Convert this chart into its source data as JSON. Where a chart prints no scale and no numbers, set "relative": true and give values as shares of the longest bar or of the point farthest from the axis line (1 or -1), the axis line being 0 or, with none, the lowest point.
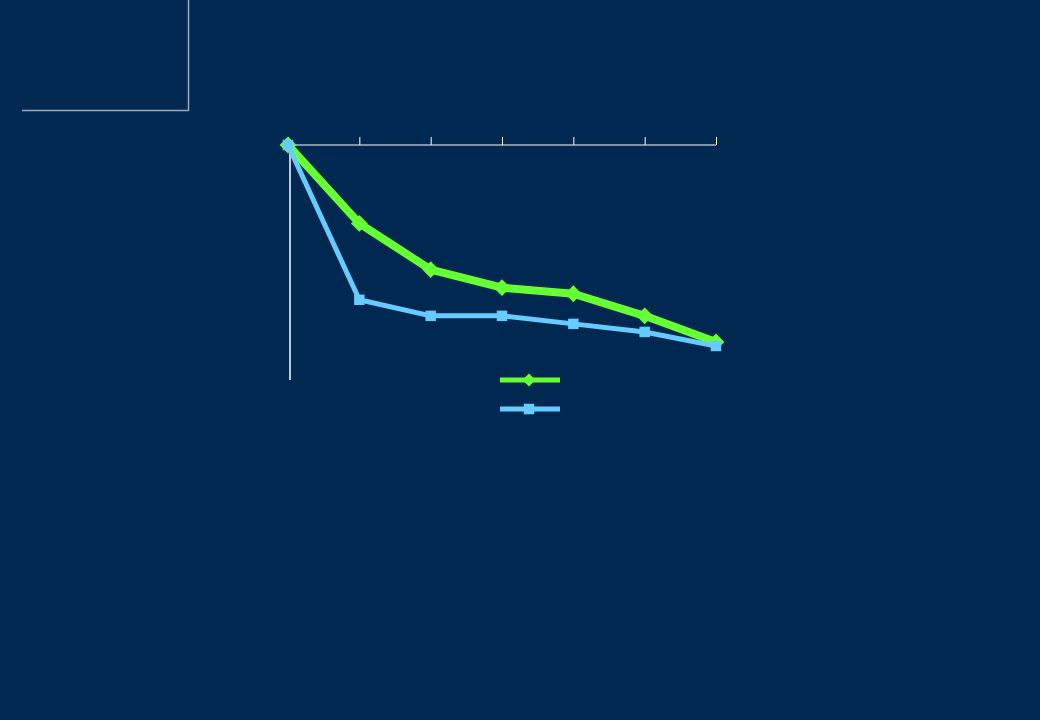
{
  "chart_data": {
    "type": "line",
    "relative": true,
    "categories": [
      null,
      null,
      null,
      null,
      null,
      null,
      null
    ],
    "grid": false,
    "series": [
      {
        "color": "#66ff33",
        "marker": "diamond",
        "values": [
          0,
          -0.39,
          -0.62,
          -0.71,
          -0.74,
          -0.85,
          -0.98
        ]
      },
      {
        "color": "#66ccff",
        "marker": "square",
        "values": [
          0,
          -0.77,
          -0.85,
          -0.85,
          -0.89,
          -0.93,
          -1
        ]
      }
    ]
  }
}
